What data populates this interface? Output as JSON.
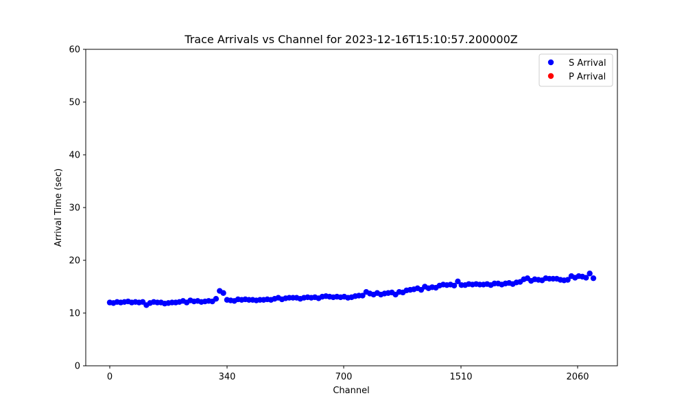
{
  "chart_data": {
    "type": "scatter",
    "title": "Trace Arrivals vs Channel for 2023-12-16T15:10:57.200000Z",
    "xlabel": "Channel",
    "ylabel": "Arrival Time (sec)",
    "x_tick_labels": [
      "0",
      "340",
      "700",
      "1510",
      "2060"
    ],
    "y_ticks": [
      0,
      10,
      20,
      30,
      40,
      50,
      60
    ],
    "ylim": [
      0,
      60
    ],
    "grid": false,
    "legend_position": "top-right",
    "series": [
      {
        "name": "S Arrival",
        "color": "#0000ff",
        "values": [
          12.0,
          11.9,
          12.1,
          12.0,
          12.1,
          12.2,
          12.0,
          12.1,
          12.0,
          12.1,
          11.5,
          11.9,
          12.1,
          12.0,
          12.0,
          11.8,
          11.9,
          12.0,
          12.0,
          12.1,
          12.3,
          12.0,
          12.4,
          12.2,
          12.3,
          12.1,
          12.2,
          12.3,
          12.2,
          12.7,
          14.2,
          13.8,
          12.5,
          12.4,
          12.3,
          12.6,
          12.5,
          12.6,
          12.5,
          12.5,
          12.4,
          12.5,
          12.5,
          12.6,
          12.5,
          12.7,
          12.9,
          12.6,
          12.8,
          12.9,
          12.9,
          12.9,
          12.7,
          12.9,
          13.0,
          12.9,
          13.0,
          12.8,
          13.1,
          13.2,
          13.1,
          13.0,
          13.1,
          13.0,
          13.1,
          12.9,
          13.0,
          13.2,
          13.3,
          13.3,
          14.0,
          13.7,
          13.5,
          13.8,
          13.5,
          13.7,
          13.8,
          13.9,
          13.5,
          14.0,
          13.9,
          14.3,
          14.4,
          14.5,
          14.7,
          14.4,
          15.0,
          14.7,
          14.9,
          14.8,
          15.2,
          15.4,
          15.3,
          15.4,
          15.2,
          16.0,
          15.3,
          15.3,
          15.5,
          15.4,
          15.5,
          15.4,
          15.4,
          15.5,
          15.3,
          15.6,
          15.6,
          15.4,
          15.6,
          15.7,
          15.5,
          15.8,
          15.9,
          16.4,
          16.6,
          16.1,
          16.4,
          16.3,
          16.2,
          16.6,
          16.5,
          16.5,
          16.5,
          16.3,
          16.2,
          16.3,
          17.0,
          16.7,
          17.0,
          16.9,
          16.7,
          17.5,
          16.6
        ]
      },
      {
        "name": "P Arrival",
        "color": "#ff0000",
        "values": []
      }
    ]
  }
}
